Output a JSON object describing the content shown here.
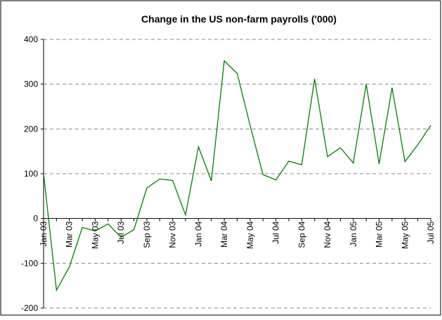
{
  "chart_data": {
    "type": "line",
    "title": "Change in the US non-farm payrolls ('000)",
    "categories": [
      "Jan 03",
      null,
      "Mar 03",
      null,
      "May 03",
      null,
      "Jul 03",
      null,
      "Sep 03",
      null,
      "Nov 03",
      null,
      "Jan 04",
      null,
      "Mar 04",
      null,
      "May 04",
      null,
      "Jul 04",
      null,
      "Sep 04",
      null,
      "Nov 04",
      null,
      "Jan 05",
      null,
      "Mar 05",
      null,
      "May 05",
      null,
      "Jul 05"
    ],
    "series": [
      {
        "name": "Change in the US non-farm payrolls",
        "color": "#008000",
        "values": [
          100,
          -160,
          -108,
          -20,
          -28,
          -12,
          -42,
          -25,
          68,
          88,
          85,
          8,
          160,
          84,
          352,
          324,
          208,
          98,
          86,
          128,
          120,
          312,
          138,
          158,
          124,
          300,
          122,
          292,
          127,
          165,
          208
        ]
      }
    ],
    "ylim": [
      -200,
      400
    ],
    "yticks": [
      -200,
      -100,
      0,
      100,
      200,
      300,
      400
    ],
    "grid": true
  }
}
